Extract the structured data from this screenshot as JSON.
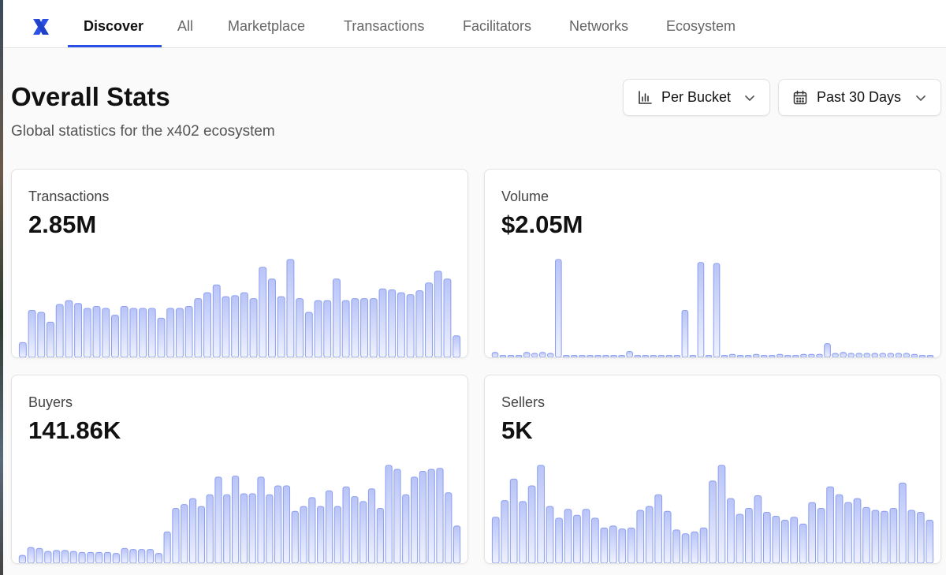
{
  "nav": {
    "logo_icon": "x402-logo-icon",
    "brand_color": "#2b50e6",
    "tabs": [
      {
        "label": "Discover",
        "active": true
      },
      {
        "label": "All",
        "active": false
      },
      {
        "label": "Marketplace",
        "active": false
      },
      {
        "label": "Transactions",
        "active": false
      },
      {
        "label": "Facilitators",
        "active": false
      },
      {
        "label": "Networks",
        "active": false
      },
      {
        "label": "Ecosystem",
        "active": false
      }
    ]
  },
  "header": {
    "title": "Overall Stats",
    "subtitle": "Global statistics for the x402 ecosystem"
  },
  "controls": {
    "bucket": {
      "label": "Per Bucket",
      "icon": "bar-chart-icon"
    },
    "range": {
      "label": "Past 30 Days",
      "icon": "calendar-icon"
    }
  },
  "cards": [
    {
      "label": "Transactions",
      "value": "2.85M",
      "chart_data": {
        "type": "bar",
        "values": [
          15,
          48,
          46,
          36,
          54,
          58,
          55,
          50,
          52,
          50,
          43,
          52,
          50,
          50,
          50,
          40,
          50,
          50,
          52,
          60,
          66,
          74,
          62,
          63,
          66,
          60,
          92,
          80,
          62,
          100,
          60,
          46,
          58,
          58,
          80,
          58,
          60,
          60,
          60,
          70,
          69,
          66,
          64,
          68,
          76,
          88,
          80,
          22
        ]
      }
    },
    {
      "label": "Volume",
      "value": "$2.05M",
      "chart_data": {
        "type": "bar",
        "values": [
          5,
          2,
          2,
          2,
          5,
          4,
          5,
          4,
          100,
          2,
          2,
          2,
          2,
          2,
          2,
          2,
          2,
          6,
          2,
          2,
          2,
          2,
          2,
          2,
          48,
          2,
          97,
          2,
          96,
          2,
          3,
          2,
          2,
          3,
          2,
          2,
          3,
          2,
          2,
          3,
          3,
          3,
          14,
          4,
          5,
          4,
          4,
          4,
          4,
          4,
          4,
          4,
          4,
          3,
          2,
          2
        ]
      }
    },
    {
      "label": "Buyers",
      "value": "141.86K",
      "chart_data": {
        "type": "bar",
        "values": [
          8,
          16,
          15,
          12,
          13,
          13,
          12,
          11,
          11,
          11,
          11,
          10,
          15,
          14,
          14,
          14,
          10,
          32,
          56,
          60,
          66,
          58,
          70,
          88,
          70,
          89,
          71,
          71,
          88,
          70,
          79,
          79,
          53,
          58,
          67,
          58,
          74,
          58,
          78,
          68,
          63,
          76,
          56,
          100,
          96,
          70,
          88,
          94,
          96,
          97,
          72,
          38
        ]
      }
    },
    {
      "label": "Sellers",
      "value": "5K",
      "chart_data": {
        "type": "bar",
        "values": [
          47,
          64,
          86,
          63,
          79,
          100,
          58,
          46,
          55,
          49,
          55,
          46,
          36,
          38,
          35,
          36,
          54,
          58,
          70,
          53,
          34,
          30,
          32,
          36,
          84,
          100,
          66,
          50,
          56,
          69,
          52,
          48,
          44,
          47,
          40,
          62,
          56,
          78,
          70,
          62,
          66,
          57,
          54,
          53,
          56,
          82,
          54,
          52,
          44
        ]
      }
    }
  ]
}
